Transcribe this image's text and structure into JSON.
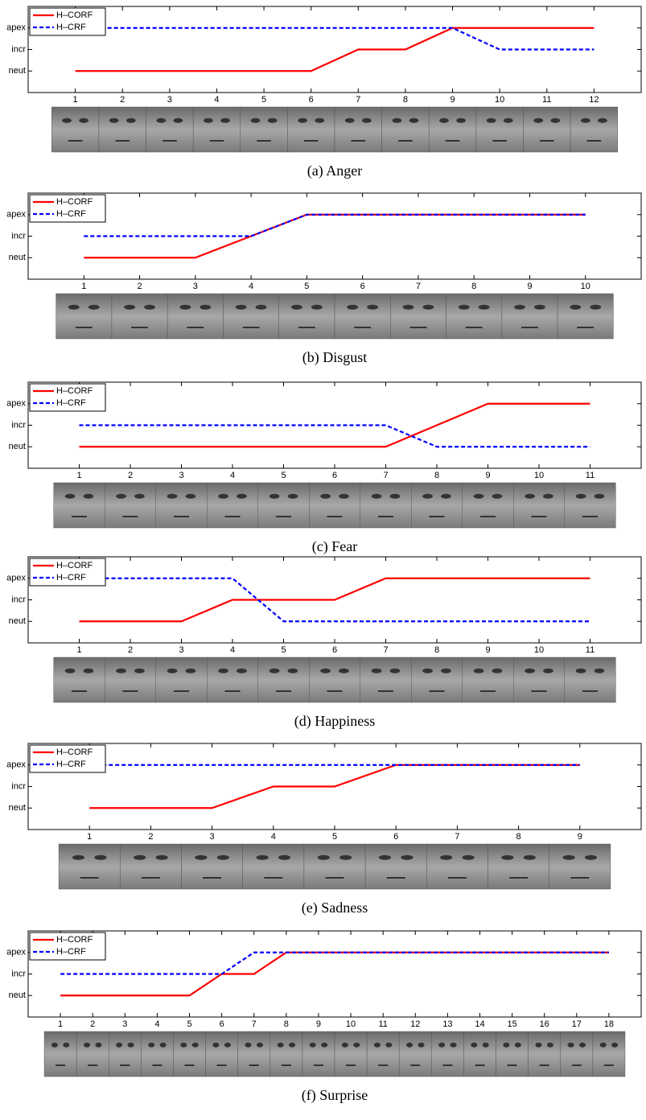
{
  "chart_data": [
    {
      "type": "line",
      "caption": "(a) Anger",
      "x": [
        1,
        2,
        3,
        4,
        5,
        6,
        7,
        8,
        9,
        10,
        11,
        12
      ],
      "xlim": [
        0,
        13
      ],
      "xticks": [
        1,
        2,
        3,
        4,
        5,
        6,
        7,
        8,
        9,
        10,
        11,
        12
      ],
      "ylim": [
        0,
        4
      ],
      "yticks": [
        {
          "value": 1,
          "label": "neut"
        },
        {
          "value": 2,
          "label": "incr"
        },
        {
          "value": 3,
          "label": "apex"
        }
      ],
      "legend": "upper left",
      "series": [
        {
          "name": "H–CORF",
          "color": "#ff0000",
          "linestyle": "solid",
          "values": [
            1,
            1,
            1,
            1,
            1,
            1,
            2,
            2,
            3,
            3,
            3,
            3
          ]
        },
        {
          "name": "H–CRF",
          "color": "#0000ff",
          "linestyle": "dashed",
          "values": [
            3,
            3,
            3,
            3,
            3,
            3,
            3,
            3,
            3,
            2,
            2,
            2
          ]
        }
      ]
    },
    {
      "type": "line",
      "caption": "(b) Disgust",
      "x": [
        1,
        2,
        3,
        4,
        5,
        6,
        7,
        8,
        9,
        10
      ],
      "xlim": [
        0,
        11
      ],
      "xticks": [
        1,
        2,
        3,
        4,
        5,
        6,
        7,
        8,
        9,
        10
      ],
      "ylim": [
        0,
        4
      ],
      "yticks": [
        {
          "value": 1,
          "label": "neut"
        },
        {
          "value": 2,
          "label": "incr"
        },
        {
          "value": 3,
          "label": "apex"
        }
      ],
      "legend": "upper left",
      "series": [
        {
          "name": "H–CORF",
          "color": "#ff0000",
          "linestyle": "solid",
          "values": [
            1,
            1,
            1,
            2,
            3,
            3,
            3,
            3,
            3,
            3
          ]
        },
        {
          "name": "H–CRF",
          "color": "#0000ff",
          "linestyle": "dashed",
          "values": [
            2,
            2,
            2,
            2,
            3,
            3,
            3,
            3,
            3,
            3
          ]
        }
      ]
    },
    {
      "type": "line",
      "caption": "(c) Fear",
      "x": [
        1,
        2,
        3,
        4,
        5,
        6,
        7,
        8,
        9,
        10,
        11
      ],
      "xlim": [
        0,
        12
      ],
      "xticks": [
        1,
        2,
        3,
        4,
        5,
        6,
        7,
        8,
        9,
        10,
        11
      ],
      "ylim": [
        0,
        4
      ],
      "yticks": [
        {
          "value": 1,
          "label": "neut"
        },
        {
          "value": 2,
          "label": "incr"
        },
        {
          "value": 3,
          "label": "apex"
        }
      ],
      "legend": "upper left",
      "series": [
        {
          "name": "H–CORF",
          "color": "#ff0000",
          "linestyle": "solid",
          "values": [
            1,
            1,
            1,
            1,
            1,
            1,
            1,
            2,
            3,
            3,
            3
          ]
        },
        {
          "name": "H–CRF",
          "color": "#0000ff",
          "linestyle": "dashed",
          "values": [
            2,
            2,
            2,
            2,
            2,
            2,
            2,
            1,
            1,
            1,
            1
          ]
        }
      ]
    },
    {
      "type": "line",
      "caption": "(d) Happiness",
      "x": [
        1,
        2,
        3,
        4,
        5,
        6,
        7,
        8,
        9,
        10,
        11
      ],
      "xlim": [
        0,
        12
      ],
      "xticks": [
        1,
        2,
        3,
        4,
        5,
        6,
        7,
        8,
        9,
        10,
        11
      ],
      "ylim": [
        0,
        4
      ],
      "yticks": [
        {
          "value": 1,
          "label": "neut"
        },
        {
          "value": 2,
          "label": "incr"
        },
        {
          "value": 3,
          "label": "apex"
        }
      ],
      "legend": "upper left",
      "series": [
        {
          "name": "H–CORF",
          "color": "#ff0000",
          "linestyle": "solid",
          "values": [
            1,
            1,
            1,
            2,
            2,
            2,
            3,
            3,
            3,
            3,
            3
          ]
        },
        {
          "name": "H–CRF",
          "color": "#0000ff",
          "linestyle": "dashed",
          "values": [
            3,
            3,
            3,
            3,
            1,
            1,
            1,
            1,
            1,
            1,
            1
          ]
        }
      ]
    },
    {
      "type": "line",
      "caption": "(e) Sadness",
      "x": [
        1,
        2,
        3,
        4,
        5,
        6,
        7,
        8,
        9
      ],
      "xlim": [
        0,
        10
      ],
      "xticks": [
        1,
        2,
        3,
        4,
        5,
        6,
        7,
        8,
        9
      ],
      "ylim": [
        0,
        4
      ],
      "yticks": [
        {
          "value": 1,
          "label": "neut"
        },
        {
          "value": 2,
          "label": "incr"
        },
        {
          "value": 3,
          "label": "apex"
        }
      ],
      "legend": "upper left",
      "series": [
        {
          "name": "H–CORF",
          "color": "#ff0000",
          "linestyle": "solid",
          "values": [
            1,
            1,
            1,
            2,
            2,
            3,
            3,
            3,
            3
          ]
        },
        {
          "name": "H–CRF",
          "color": "#0000ff",
          "linestyle": "dashed",
          "values": [
            3,
            3,
            3,
            3,
            3,
            3,
            3,
            3,
            3
          ]
        }
      ]
    },
    {
      "type": "line",
      "caption": "(f) Surprise",
      "x": [
        1,
        2,
        3,
        4,
        5,
        6,
        7,
        8,
        9,
        10,
        11,
        12,
        13,
        14,
        15,
        16,
        17,
        18
      ],
      "xlim": [
        0,
        19
      ],
      "xticks": [
        1,
        2,
        3,
        4,
        5,
        6,
        7,
        8,
        9,
        10,
        11,
        12,
        13,
        14,
        15,
        16,
        17,
        18
      ],
      "ylim": [
        0,
        4
      ],
      "yticks": [
        {
          "value": 1,
          "label": "neut"
        },
        {
          "value": 2,
          "label": "incr"
        },
        {
          "value": 3,
          "label": "apex"
        }
      ],
      "legend": "upper left",
      "series": [
        {
          "name": "H–CORF",
          "color": "#ff0000",
          "linestyle": "solid",
          "values": [
            1,
            1,
            1,
            1,
            1,
            2,
            2,
            3,
            3,
            3,
            3,
            3,
            3,
            3,
            3,
            3,
            3,
            3
          ]
        },
        {
          "name": "H–CRF",
          "color": "#0000ff",
          "linestyle": "dashed",
          "values": [
            2,
            2,
            2,
            2,
            2,
            2,
            3,
            3,
            3,
            3,
            3,
            3,
            3,
            3,
            3,
            3,
            3,
            3
          ]
        }
      ]
    }
  ]
}
